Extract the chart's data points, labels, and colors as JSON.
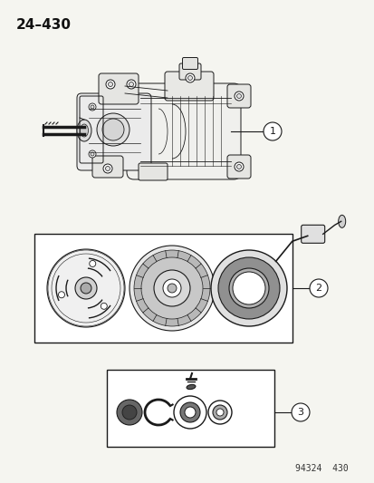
{
  "title": "24–430",
  "background_color": "#f5f5f0",
  "page_number": "94324  430",
  "label1": "1",
  "label2": "2",
  "label3": "3",
  "fig_width": 4.14,
  "fig_height": 5.33,
  "dpi": 100
}
